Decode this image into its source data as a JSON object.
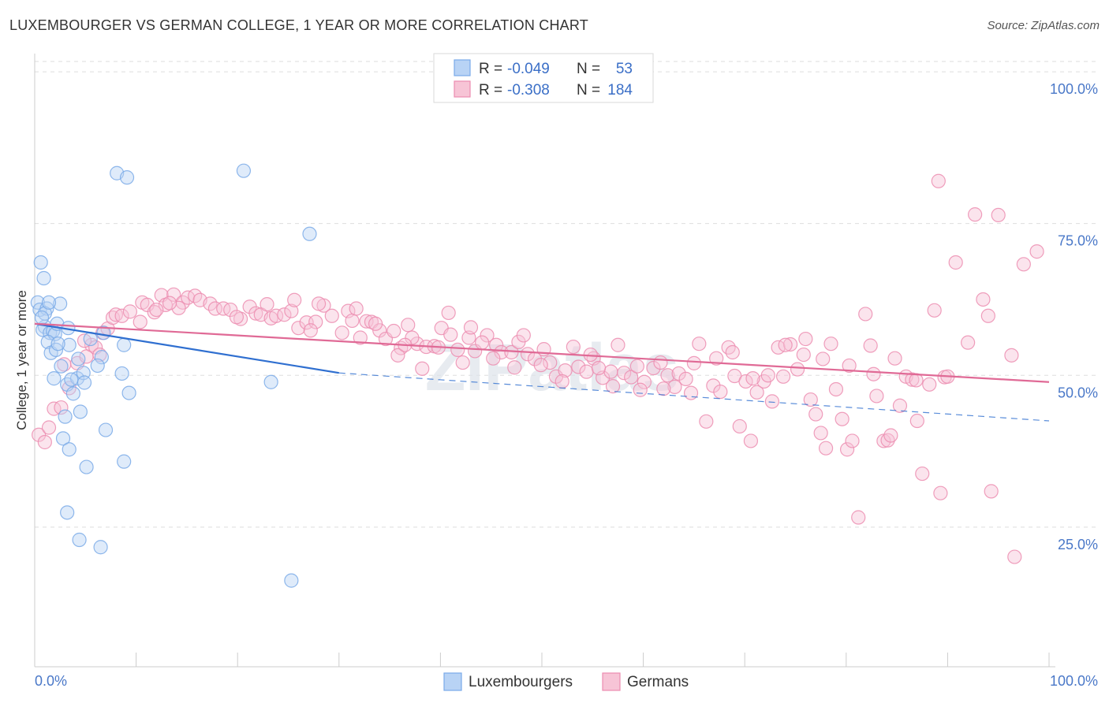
{
  "chart_data": {
    "type": "scatter",
    "title": "LUXEMBOURGER VS GERMAN COLLEGE, 1 YEAR OR MORE CORRELATION CHART",
    "source": "Source: ZipAtlas.com",
    "xlabel": "",
    "ylabel": "College, 1 year or more",
    "xlim": [
      0,
      100
    ],
    "ylim": [
      2,
      103
    ],
    "x_tick_labels": [
      "0.0%",
      "100.0%"
    ],
    "y_ticks": [
      {
        "value": 25,
        "label": "25.0%"
      },
      {
        "value": 50,
        "label": "50.0%"
      },
      {
        "value": 75,
        "label": "75.0%"
      },
      {
        "value": 100,
        "label": "100.0%"
      }
    ],
    "watermark": "ZIPatlas",
    "legend": {
      "r_label": "R =",
      "n_label": "N =",
      "entries": [
        {
          "name": "Luxembourgers",
          "r": "-0.049",
          "n": "53",
          "color": "#7aaae8",
          "fill": "#b8d3f5"
        },
        {
          "name": "Germans",
          "r": "-0.308",
          "n": "184",
          "color": "#ec8db0",
          "fill": "#f7c4d6"
        }
      ]
    },
    "series": [
      {
        "name": "Luxembourgers",
        "color": "#7aaae8",
        "trend": {
          "x": [
            0,
            30,
            100
          ],
          "y": [
            58.5,
            50.4,
            42.5
          ],
          "solid_until": 30,
          "color": "#2f6fd0"
        },
        "points": [
          [
            0.3,
            62
          ],
          [
            0.6,
            68.6
          ],
          [
            0.9,
            66
          ],
          [
            0.5,
            60.8
          ],
          [
            1.0,
            58
          ],
          [
            0.8,
            57.5
          ],
          [
            1.2,
            61
          ],
          [
            1.5,
            57
          ],
          [
            1.8,
            57.3
          ],
          [
            2.0,
            56.8
          ],
          [
            2.2,
            58.5
          ],
          [
            2.5,
            61.8
          ],
          [
            1.3,
            55.5
          ],
          [
            1.6,
            53.7
          ],
          [
            2.1,
            54.2
          ],
          [
            3.3,
            57.8
          ],
          [
            4.3,
            52.7
          ],
          [
            3.4,
            55
          ],
          [
            1.9,
            49.5
          ],
          [
            3.2,
            48.5
          ],
          [
            4.2,
            49.5
          ],
          [
            4.8,
            50.4
          ],
          [
            3.6,
            49.3
          ],
          [
            4.9,
            48.8
          ],
          [
            3.8,
            47
          ],
          [
            2.6,
            51.5
          ],
          [
            6.6,
            53
          ],
          [
            8.8,
            55
          ],
          [
            8.6,
            50.3
          ],
          [
            9.3,
            47.1
          ],
          [
            6.8,
            57
          ],
          [
            7.0,
            41
          ],
          [
            4.5,
            44
          ],
          [
            3.0,
            43.2
          ],
          [
            2.8,
            39.6
          ],
          [
            3.4,
            37.8
          ],
          [
            8.8,
            35.8
          ],
          [
            5.1,
            34.9
          ],
          [
            3.2,
            27.4
          ],
          [
            4.4,
            22.9
          ],
          [
            6.5,
            21.7
          ],
          [
            8.1,
            83.3
          ],
          [
            9.1,
            82.6
          ],
          [
            20.6,
            83.7
          ],
          [
            27.1,
            73.3
          ],
          [
            23.3,
            48.9
          ],
          [
            25.3,
            16.2
          ],
          [
            1.0,
            60.2
          ],
          [
            0.7,
            59.5
          ],
          [
            1.4,
            62
          ],
          [
            2.3,
            55.2
          ],
          [
            5.5,
            56
          ],
          [
            6.2,
            51.6
          ]
        ]
      },
      {
        "name": "Germans",
        "color": "#ec8db0",
        "trend": {
          "x": [
            0,
            100
          ],
          "y": [
            58.5,
            48.9
          ],
          "solid_until": 100,
          "color": "#e06a96"
        },
        "points": [
          [
            0.4,
            40.2
          ],
          [
            1.0,
            39
          ],
          [
            1.4,
            41.4
          ],
          [
            1.9,
            44.5
          ],
          [
            2.6,
            44.7
          ],
          [
            2.9,
            51.8
          ],
          [
            3.4,
            47.9
          ],
          [
            4.2,
            52
          ],
          [
            5.1,
            53.1
          ],
          [
            5.6,
            55
          ],
          [
            6.7,
            57
          ],
          [
            7.2,
            57.7
          ],
          [
            7.7,
            59.5
          ],
          [
            8.0,
            60
          ],
          [
            8.6,
            59.8
          ],
          [
            9.4,
            60.5
          ],
          [
            10.4,
            58.8
          ],
          [
            10.6,
            62
          ],
          [
            11.1,
            61.6
          ],
          [
            11.8,
            60.4
          ],
          [
            12.5,
            63.2
          ],
          [
            12.9,
            61.6
          ],
          [
            13.7,
            63.3
          ],
          [
            14.6,
            62
          ],
          [
            15.1,
            62.8
          ],
          [
            15.8,
            63.1
          ],
          [
            16.3,
            62.4
          ],
          [
            17.3,
            61.8
          ],
          [
            17.8,
            61
          ],
          [
            18.6,
            61
          ],
          [
            19.3,
            60.8
          ],
          [
            20.3,
            59.3
          ],
          [
            21.2,
            61.3
          ],
          [
            21.8,
            60.2
          ],
          [
            22.3,
            60
          ],
          [
            23.3,
            59.4
          ],
          [
            23.8,
            59.8
          ],
          [
            24.6,
            60
          ],
          [
            25.3,
            60.6
          ],
          [
            26.0,
            57.8
          ],
          [
            26.8,
            58.7
          ],
          [
            27.7,
            58.8
          ],
          [
            28.5,
            61.5
          ],
          [
            29.3,
            59.8
          ],
          [
            30.3,
            57
          ],
          [
            30.9,
            60.6
          ],
          [
            31.3,
            59
          ],
          [
            32.1,
            56.2
          ],
          [
            32.7,
            58.9
          ],
          [
            33.2,
            58.8
          ],
          [
            34.0,
            57.4
          ],
          [
            34.6,
            56
          ],
          [
            35.4,
            57.3
          ],
          [
            36.1,
            54.5
          ],
          [
            36.8,
            58.3
          ],
          [
            37.7,
            55.2
          ],
          [
            38.6,
            54.7
          ],
          [
            39.4,
            54.8
          ],
          [
            40.1,
            57.8
          ],
          [
            41.0,
            56.7
          ],
          [
            41.7,
            54.2
          ],
          [
            42.8,
            56.2
          ],
          [
            43.4,
            54
          ],
          [
            44.6,
            56.6
          ],
          [
            45.5,
            55
          ],
          [
            46.0,
            53.8
          ],
          [
            47.0,
            53.8
          ],
          [
            47.7,
            55.5
          ],
          [
            48.6,
            53.5
          ],
          [
            49.3,
            52.7
          ],
          [
            50.2,
            54.3
          ],
          [
            50.8,
            52.1
          ],
          [
            51.4,
            49.8
          ],
          [
            52.3,
            50.8
          ],
          [
            53.1,
            54.7
          ],
          [
            53.6,
            51.4
          ],
          [
            54.4,
            50.6
          ],
          [
            55.1,
            52.8
          ],
          [
            56.0,
            49.6
          ],
          [
            56.8,
            50.6
          ],
          [
            57.5,
            55
          ],
          [
            58.1,
            50.4
          ],
          [
            58.8,
            49.7
          ],
          [
            59.4,
            51.5
          ],
          [
            60.1,
            48.9
          ],
          [
            61.0,
            51.2
          ],
          [
            61.7,
            52.1
          ],
          [
            62.4,
            50
          ],
          [
            63.1,
            48.1
          ],
          [
            63.5,
            50.3
          ],
          [
            64.2,
            49.4
          ],
          [
            65.0,
            52
          ],
          [
            65.5,
            55.2
          ],
          [
            66.2,
            42.4
          ],
          [
            66.9,
            48.3
          ],
          [
            67.6,
            47.3
          ],
          [
            68.4,
            54.6
          ],
          [
            69.0,
            49.9
          ],
          [
            69.5,
            41.6
          ],
          [
            70.1,
            49
          ],
          [
            70.6,
            39.2
          ],
          [
            71.2,
            47.2
          ],
          [
            71.9,
            49
          ],
          [
            72.7,
            45.7
          ],
          [
            73.3,
            54.6
          ],
          [
            73.8,
            49.8
          ],
          [
            74.5,
            55.1
          ],
          [
            75.2,
            51
          ],
          [
            75.8,
            53.4
          ],
          [
            76.5,
            46
          ],
          [
            77.0,
            43.6
          ],
          [
            77.5,
            40.5
          ],
          [
            78.0,
            38
          ],
          [
            78.5,
            55.2
          ],
          [
            79.0,
            47.7
          ],
          [
            79.6,
            42.8
          ],
          [
            80.1,
            37.8
          ],
          [
            80.6,
            39.2
          ],
          [
            81.2,
            26.6
          ],
          [
            81.9,
            60.1
          ],
          [
            82.4,
            54.9
          ],
          [
            83.0,
            46.6
          ],
          [
            83.7,
            39.2
          ],
          [
            84.1,
            39.3
          ],
          [
            84.8,
            52.8
          ],
          [
            85.3,
            45
          ],
          [
            85.9,
            49.8
          ],
          [
            86.5,
            49.3
          ],
          [
            87.0,
            42.5
          ],
          [
            87.5,
            33.8
          ],
          [
            88.2,
            48.5
          ],
          [
            88.7,
            60.7
          ],
          [
            89.1,
            82
          ],
          [
            89.3,
            30.6
          ],
          [
            89.7,
            49.7
          ],
          [
            90.8,
            68.6
          ],
          [
            92.0,
            55.4
          ],
          [
            92.7,
            76.5
          ],
          [
            93.5,
            62.5
          ],
          [
            94.0,
            59.8
          ],
          [
            94.3,
            30.9
          ],
          [
            95.0,
            76.4
          ],
          [
            96.3,
            53.3
          ],
          [
            96.6,
            20.1
          ],
          [
            97.5,
            68.3
          ],
          [
            98.8,
            70.4
          ],
          [
            4.9,
            55.7
          ],
          [
            6.0,
            54.6
          ],
          [
            12.0,
            60.8
          ],
          [
            14.2,
            61.1
          ],
          [
            19.9,
            59.6
          ],
          [
            25.6,
            62.4
          ],
          [
            27.2,
            57.4
          ],
          [
            31.7,
            61
          ],
          [
            33.6,
            58.5
          ],
          [
            35.8,
            53.3
          ],
          [
            37.2,
            56.2
          ],
          [
            38.2,
            51.1
          ],
          [
            39.8,
            54.6
          ],
          [
            40.8,
            60.3
          ],
          [
            42.2,
            52.1
          ],
          [
            44.1,
            55.4
          ],
          [
            45.2,
            52.8
          ],
          [
            47.3,
            51.3
          ],
          [
            48.2,
            56.6
          ],
          [
            52.0,
            49
          ],
          [
            54.8,
            53.4
          ],
          [
            57.0,
            48.2
          ],
          [
            59.7,
            47.6
          ],
          [
            62.0,
            47.8
          ],
          [
            64.7,
            47.1
          ],
          [
            67.2,
            52.8
          ],
          [
            68.8,
            53.8
          ],
          [
            70.8,
            49.5
          ],
          [
            72.3,
            50
          ],
          [
            74.0,
            55
          ],
          [
            76.0,
            56
          ],
          [
            77.7,
            52.7
          ],
          [
            80.3,
            51.6
          ],
          [
            82.7,
            50.2
          ],
          [
            84.4,
            40.1
          ],
          [
            86.9,
            49.2
          ],
          [
            90.0,
            49.8
          ],
          [
            6.4,
            53.4
          ],
          [
            13.3,
            61.9
          ],
          [
            22.9,
            61.7
          ],
          [
            28.0,
            61.8
          ],
          [
            36.5,
            55
          ],
          [
            43.0,
            57.9
          ],
          [
            49.9,
            51.7
          ],
          [
            55.6,
            51.2
          ]
        ]
      }
    ]
  }
}
